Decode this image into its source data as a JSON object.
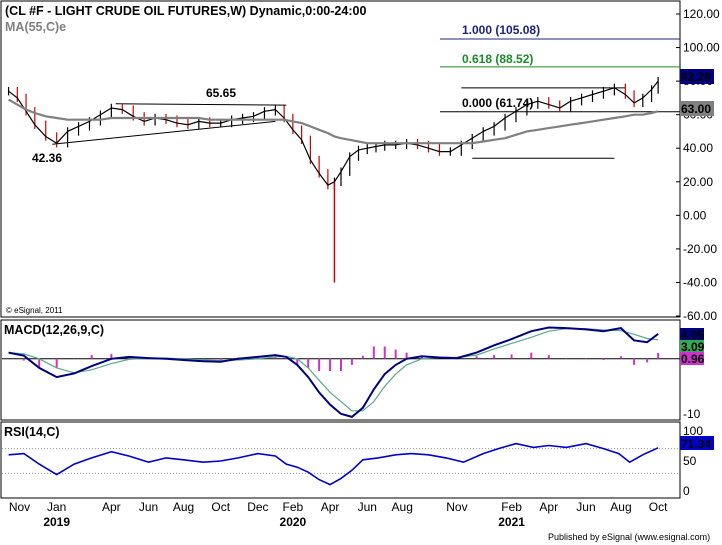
{
  "chart_data": [
    {
      "type": "line",
      "title": "(CL #F - LIGHT CRUDE OIL FUTURES,W) Dynamic,0:00-24:00",
      "ma_label": "MA(55,C)e",
      "watermark": "© eSignal, 2011",
      "ylim": [
        -60,
        120
      ],
      "y_ticks": [
        "120.00",
        "100.00",
        "80.00",
        "60.00",
        "40.00",
        "20.00",
        "0.00",
        "-20.00",
        "-40.00",
        "-60.00"
      ],
      "x": [
        2018.78,
        2018.82,
        2018.86,
        2018.9,
        2018.95,
        2019.0,
        2019.05,
        2019.1,
        2019.15,
        2019.2,
        2019.25,
        2019.3,
        2019.35,
        2019.4,
        2019.45,
        2019.5,
        2019.55,
        2019.6,
        2019.65,
        2019.7,
        2019.75,
        2019.8,
        2019.85,
        2019.9,
        2019.95,
        2020.0,
        2020.04,
        2020.08,
        2020.12,
        2020.16,
        2020.2,
        2020.24,
        2020.27,
        2020.3,
        2020.34,
        2020.38,
        2020.42,
        2020.46,
        2020.5,
        2020.55,
        2020.6,
        2020.65,
        2020.7,
        2020.75,
        2020.8,
        2020.85,
        2020.9,
        2020.95,
        2021.0,
        2021.05,
        2021.1,
        2021.15,
        2021.2,
        2021.25,
        2021.3,
        2021.35,
        2021.4,
        2021.45,
        2021.5,
        2021.55,
        2021.6,
        2021.64,
        2021.68,
        2021.72,
        2021.75
      ],
      "series": [
        {
          "values": [
            74,
            70,
            62,
            54,
            47,
            43,
            50,
            53,
            56,
            60,
            64,
            63,
            59,
            56,
            58,
            57,
            55,
            54,
            56,
            55,
            55,
            57,
            58,
            59,
            62,
            63,
            58,
            51,
            45,
            33,
            25,
            18,
            20,
            26,
            35,
            39,
            40,
            41,
            42,
            42,
            43,
            42,
            40,
            38,
            38,
            42,
            46,
            50,
            53,
            58,
            62,
            66,
            68,
            66,
            64,
            68,
            70,
            72,
            74,
            76,
            72,
            67,
            70,
            75,
            80
          ]
        },
        {
          "name": "MA(55,C)e",
          "values": [
            69,
            66,
            63,
            61,
            59,
            58,
            57,
            57,
            57,
            57,
            58,
            58,
            58,
            58,
            58,
            58,
            58,
            58,
            58,
            57,
            57,
            57,
            57,
            57,
            57,
            57,
            57,
            56,
            55,
            53,
            51,
            49,
            47,
            46,
            45,
            44,
            43,
            43,
            43,
            43,
            43,
            43,
            43,
            43,
            43,
            43,
            43,
            44,
            45,
            46,
            48,
            50,
            51,
            52,
            53,
            54,
            55,
            56,
            57,
            58,
            59,
            60,
            60,
            61,
            62
          ]
        }
      ],
      "annotations": {
        "high_label": "65.65",
        "low_label": "42.36",
        "fib_levels": [
          {
            "label": "1.000 (105.08)",
            "value": 105.08,
            "color": "#1a237e"
          },
          {
            "label": "0.618 (88.52)",
            "value": 88.52,
            "color": "#1b8a2a"
          },
          {
            "label": "0.000 (61.74)",
            "value": 61.74,
            "color": "#000000"
          }
        ],
        "last_price": "82.28",
        "ma_value": "63.00",
        "spike_low": -40
      }
    },
    {
      "type": "line",
      "title": "MACD(12,26,9,C)",
      "ylim": [
        -10,
        6
      ],
      "y_ticks": [
        "-10"
      ],
      "value_labels": [
        "4.05",
        "3.09",
        "0.96"
      ],
      "x": [
        2018.78,
        2018.85,
        2018.92,
        2019.0,
        2019.08,
        2019.16,
        2019.25,
        2019.33,
        2019.42,
        2019.5,
        2019.58,
        2019.67,
        2019.75,
        2019.83,
        2019.92,
        2020.0,
        2020.05,
        2020.1,
        2020.15,
        2020.2,
        2020.25,
        2020.3,
        2020.35,
        2020.4,
        2020.45,
        2020.5,
        2020.55,
        2020.6,
        2020.67,
        2020.75,
        2020.83,
        2020.92,
        2021.0,
        2021.08,
        2021.17,
        2021.25,
        2021.33,
        2021.42,
        2021.5,
        2021.58,
        2021.64,
        2021.7,
        2021.75
      ],
      "series": [
        {
          "name": "MACD",
          "values": [
            1,
            0.5,
            -1.5,
            -3,
            -2.4,
            -1.2,
            0,
            0.3,
            0.1,
            0,
            -0.2,
            -0.4,
            -0.5,
            0,
            0.3,
            0.6,
            0.3,
            -1,
            -3,
            -5.5,
            -7.5,
            -9,
            -9.5,
            -8,
            -5,
            -2.5,
            -1,
            0,
            0.4,
            0.2,
            0.1,
            1,
            2.2,
            3.2,
            4.5,
            5.1,
            5,
            4.8,
            4.5,
            5,
            3,
            2.7,
            4.05
          ]
        },
        {
          "name": "Signal",
          "values": [
            1,
            0.8,
            0,
            -1.5,
            -2.3,
            -1.8,
            -0.8,
            -0.1,
            0.1,
            0.1,
            0,
            -0.2,
            -0.3,
            -0.2,
            0,
            0.3,
            0.4,
            0,
            -1.5,
            -3.5,
            -5.5,
            -7,
            -8.5,
            -8.5,
            -7,
            -4.5,
            -2.5,
            -1,
            0,
            0.2,
            0.2,
            0.6,
            1.6,
            2.5,
            3.5,
            4.5,
            4.9,
            4.9,
            4.7,
            4.6,
            4,
            3.3,
            3.09
          ]
        },
        {
          "name": "Histogram",
          "values": [
            0,
            -0.3,
            -1.5,
            -1.5,
            -0.1,
            0.6,
            0.8,
            0.4,
            0,
            -0.1,
            -0.2,
            -0.2,
            -0.2,
            0.2,
            0.3,
            0.3,
            -0.1,
            -1,
            -1.5,
            -2,
            -2,
            -2,
            -1,
            0.5,
            2,
            2,
            1.5,
            1,
            0.4,
            0,
            -0.1,
            0.4,
            0.6,
            0.7,
            1,
            0.6,
            0.1,
            -0.1,
            -0.2,
            0.4,
            -1,
            -0.6,
            0.96
          ]
        }
      ]
    },
    {
      "type": "line",
      "title": "RSI(14,C)",
      "ylim": [
        0,
        100
      ],
      "y_ticks": [
        "100",
        "50",
        "0"
      ],
      "value_label": "71.34",
      "x": [
        2018.78,
        2018.85,
        2018.92,
        2019.0,
        2019.08,
        2019.16,
        2019.25,
        2019.33,
        2019.42,
        2019.5,
        2019.58,
        2019.67,
        2019.75,
        2019.83,
        2019.92,
        2020.0,
        2020.05,
        2020.1,
        2020.15,
        2020.2,
        2020.25,
        2020.3,
        2020.35,
        2020.4,
        2020.47,
        2020.55,
        2020.62,
        2020.7,
        2020.78,
        2020.86,
        2020.95,
        2021.02,
        2021.1,
        2021.18,
        2021.25,
        2021.33,
        2021.42,
        2021.5,
        2021.57,
        2021.62,
        2021.68,
        2021.75
      ],
      "series": [
        {
          "name": "RSI",
          "values": [
            60,
            62,
            45,
            28,
            45,
            55,
            65,
            58,
            48,
            55,
            52,
            48,
            50,
            55,
            62,
            58,
            45,
            40,
            32,
            20,
            12,
            22,
            35,
            52,
            55,
            60,
            62,
            60,
            55,
            48,
            62,
            70,
            78,
            72,
            75,
            72,
            78,
            70,
            62,
            48,
            60,
            71.34
          ]
        }
      ]
    }
  ],
  "x_axis": {
    "month_labels": [
      "Nov",
      "Jan",
      "Apr",
      "Jun",
      "Aug",
      "Oct",
      "Dec",
      "Feb",
      "Apr",
      "Jun",
      "Aug",
      "Nov",
      "Feb",
      "Apr",
      "Jun",
      "Aug",
      "Oct"
    ],
    "year_labels": [
      "2019",
      "2020",
      "2021"
    ]
  },
  "footer": "Published by eSignal (www.esignal.com)",
  "colors": {
    "price": "#000000",
    "ma": "#808080",
    "macd": "#000080",
    "signal": "#5aaa8a",
    "histogram": "#cc33cc",
    "rsi": "#0000cc",
    "last_price_bg": "#000080",
    "ma_value_bg": "#808080",
    "macd_value_bg": "#000080",
    "signal_value_bg": "#33aa55",
    "hist_value_bg": "#cc33cc"
  }
}
